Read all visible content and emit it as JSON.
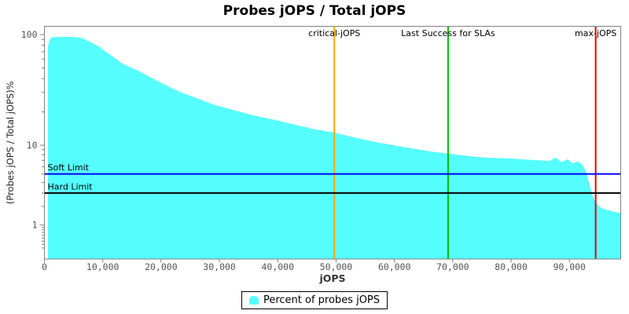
{
  "title": "Probes jOPS / Total jOPS",
  "chart_data": {
    "type": "area",
    "title": "Probes jOPS / Total jOPS",
    "xlabel": "jOPS",
    "ylabel": "(Probes jOPS / Total jOPS)%",
    "grid": false,
    "x_axis": {
      "range": [
        0,
        98800
      ],
      "ticks": [
        {
          "v": 0,
          "label": "0"
        },
        {
          "v": 10000,
          "label": "10,000"
        },
        {
          "v": 20000,
          "label": "20,000"
        },
        {
          "v": 30000,
          "label": "30,000"
        },
        {
          "v": 40000,
          "label": "40,000"
        },
        {
          "v": 50000,
          "label": "50,000"
        },
        {
          "v": 60000,
          "label": "60,000"
        },
        {
          "v": 70000,
          "label": "70,000"
        },
        {
          "v": 80000,
          "label": "80,000"
        },
        {
          "v": 90000,
          "label": "90,000"
        }
      ]
    },
    "y_axis": {
      "scale": "log10-adjusted-below-10",
      "ticks": [
        {
          "v": 100,
          "label": "100"
        },
        {
          "v": 10,
          "label": "10"
        },
        {
          "v": 1,
          "label": "1"
        }
      ],
      "minor_ticks": [
        90,
        80,
        70,
        60,
        50,
        40,
        30,
        20,
        9,
        8,
        7,
        6,
        5,
        4,
        3,
        2,
        0.9,
        0.8,
        0.7,
        0.6,
        0.5,
        0.4,
        0.3,
        0.2
      ]
    },
    "series": [
      {
        "name": "Percent of probes jOPS",
        "color": "#55FFFF",
        "points": [
          [
            600,
            78
          ],
          [
            900,
            90
          ],
          [
            1200,
            94
          ],
          [
            2000,
            95
          ],
          [
            3500,
            95.3
          ],
          [
            5000,
            95
          ],
          [
            6500,
            92.8
          ],
          [
            8000,
            85
          ],
          [
            9200,
            78.6
          ],
          [
            10600,
            69.5
          ],
          [
            11900,
            62.3
          ],
          [
            13300,
            54.9
          ],
          [
            14600,
            50.9
          ],
          [
            16000,
            47.4
          ],
          [
            17500,
            43
          ],
          [
            19300,
            38.2
          ],
          [
            21500,
            33.5
          ],
          [
            23500,
            30
          ],
          [
            26100,
            26.6
          ],
          [
            29000,
            23.3
          ],
          [
            32800,
            20.5
          ],
          [
            36000,
            18.5
          ],
          [
            39600,
            16.9
          ],
          [
            43000,
            15.3
          ],
          [
            46300,
            13.9
          ],
          [
            49700,
            13
          ],
          [
            53000,
            11.8
          ],
          [
            56000,
            10.9
          ],
          [
            59800,
            10
          ],
          [
            63000,
            9.3
          ],
          [
            66500,
            8.6
          ],
          [
            69300,
            8.2
          ],
          [
            73200,
            7.7
          ],
          [
            76000,
            7.45
          ],
          [
            80000,
            7.3
          ],
          [
            83000,
            7.1
          ],
          [
            86700,
            6.9
          ],
          [
            87600,
            7.5
          ],
          [
            88700,
            6.7
          ],
          [
            89700,
            7.2
          ],
          [
            90500,
            6.5
          ],
          [
            91400,
            6.8
          ],
          [
            92200,
            6.3
          ],
          [
            92800,
            5.4
          ],
          [
            93300,
            4.1
          ],
          [
            93700,
            3.2
          ],
          [
            94100,
            2.6
          ],
          [
            94550,
            2.25
          ],
          [
            95100,
            2.0
          ],
          [
            95750,
            1.85
          ],
          [
            96400,
            1.78
          ],
          [
            97250,
            1.71
          ],
          [
            98050,
            1.64
          ],
          [
            98800,
            1.6
          ]
        ]
      }
    ],
    "markers": {
      "vertical": [
        {
          "label": "critical-jOPS",
          "x": 49700,
          "color": "#FFA500"
        },
        {
          "label": "Last Success for SLAs",
          "x": 69200,
          "color": "#00C000"
        },
        {
          "label": "max-jOPS",
          "x": 94500,
          "color": "#EE0000"
        }
      ],
      "horizontal": [
        {
          "label": "Soft Limit",
          "y": 5,
          "color": "#0000FF"
        },
        {
          "label": "Hard Limit",
          "y": 3,
          "color": "#000000"
        }
      ]
    },
    "legend": {
      "position": "bottom-center",
      "items": [
        {
          "label": "Percent of probes jOPS",
          "color": "#55FFFF"
        }
      ]
    },
    "frame_color": "#808080"
  }
}
